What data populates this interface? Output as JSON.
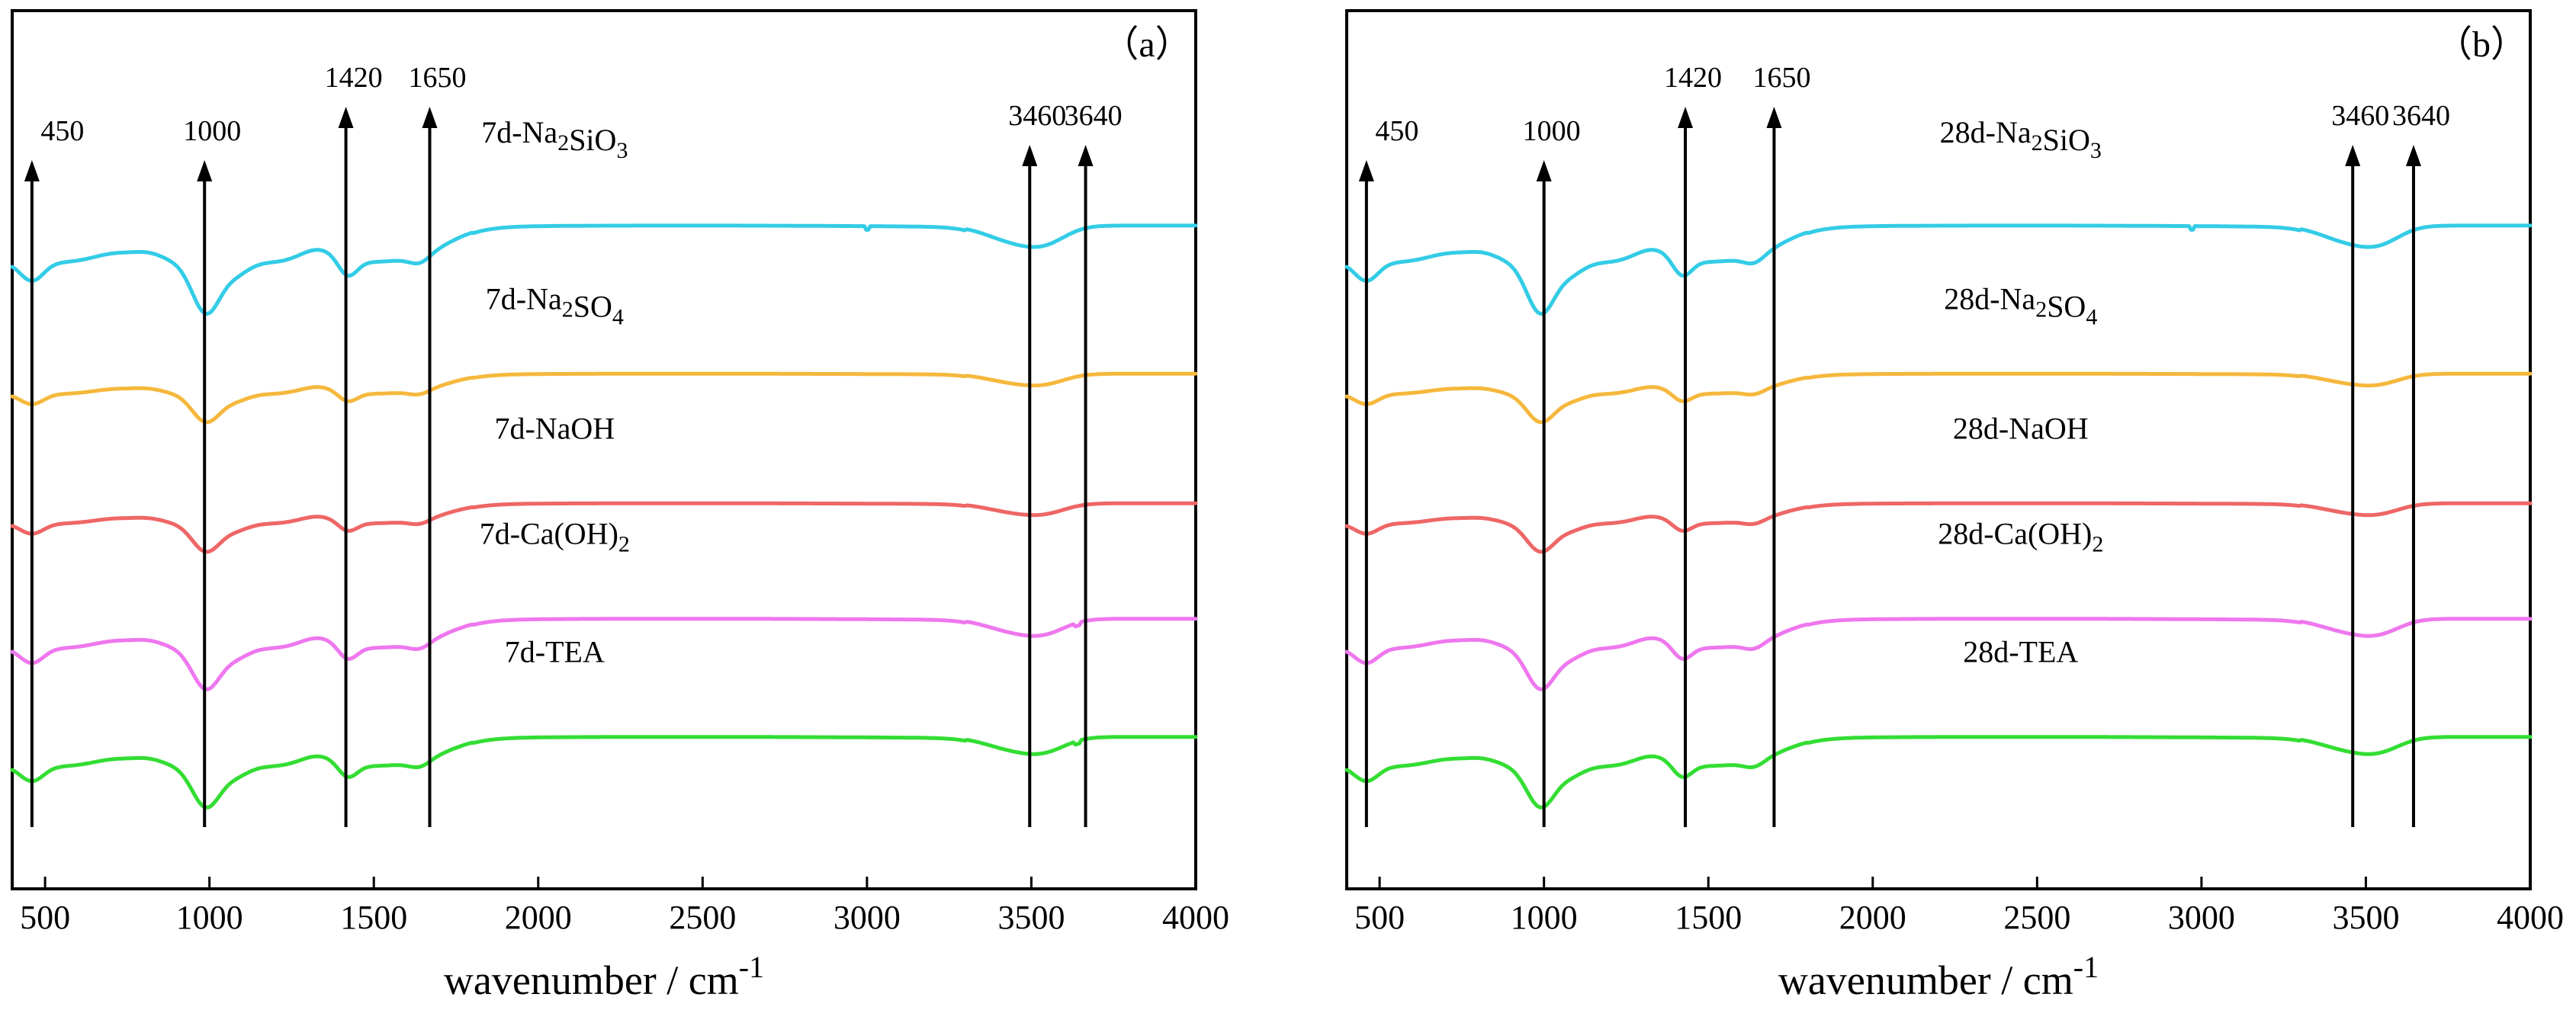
{
  "chart_data": [
    {
      "type": "line",
      "panel_label": "（a）",
      "xlabel": "wavenumber / cm",
      "xlabel_sup": "-1",
      "ylabel": "",
      "xlim": [
        400,
        4000
      ],
      "xticks": [
        500,
        1000,
        1500,
        2000,
        2500,
        3000,
        3500,
        4000
      ],
      "annotations": [
        {
          "label": "450",
          "x": 460
        },
        {
          "label": "1000",
          "x": 985
        },
        {
          "label": "1420",
          "x": 1415
        },
        {
          "label": "1650",
          "x": 1670
        },
        {
          "label": "3460",
          "x": 3495
        },
        {
          "label": "3640",
          "x": 3665
        }
      ],
      "series": [
        {
          "name": "7d-Na2SiO3",
          "label_parts": [
            "7d-Na",
            "2",
            "SiO",
            "3",
            ""
          ],
          "color": "#33cce6",
          "offset": 4.0,
          "scale": 1.0,
          "spike": 3000
        },
        {
          "name": "7d-Na2SO4",
          "label_parts": [
            "7d-Na",
            "2",
            "SO",
            "4",
            ""
          ],
          "color": "#f5b83d",
          "offset": 3.0,
          "scale": 0.55
        },
        {
          "name": "7d-NaOH",
          "label_parts": [
            "7d-NaOH",
            "",
            "",
            "",
            ""
          ],
          "color": "#ee6666",
          "offset": 2.0,
          "scale": 0.55
        },
        {
          "name": "7d-Ca(OH)2",
          "label_parts": [
            "7d-Ca(OH)",
            "2",
            "",
            "",
            ""
          ],
          "color": "#ee77ee",
          "offset": 1.0,
          "scale": 0.8,
          "spike": 3640
        },
        {
          "name": "7d-TEA",
          "label_parts": [
            "7d-TEA",
            "",
            "",
            "",
            ""
          ],
          "color": "#33dd33",
          "offset": 0.0,
          "scale": 0.8,
          "spike": 3640
        }
      ]
    },
    {
      "type": "line",
      "panel_label": "（b）",
      "xlabel": "wavenumber / cm",
      "xlabel_sup": "-1",
      "ylabel": "",
      "xlim": [
        400,
        4000
      ],
      "xticks": [
        500,
        1000,
        1500,
        2000,
        2500,
        3000,
        3500,
        4000
      ],
      "annotations": [
        {
          "label": "450",
          "x": 460
        },
        {
          "label": "1000",
          "x": 1000
        },
        {
          "label": "1420",
          "x": 1430
        },
        {
          "label": "1650",
          "x": 1700
        },
        {
          "label": "3460",
          "x": 3460
        },
        {
          "label": "3640",
          "x": 3645
        }
      ],
      "series": [
        {
          "name": "28d-Na2SiO3",
          "label_parts": [
            "28d-Na",
            "2",
            "SiO",
            "3",
            ""
          ],
          "color": "#33cce6",
          "offset": 4.0,
          "scale": 1.0,
          "spike": 2970
        },
        {
          "name": "28d-Na2SO4",
          "label_parts": [
            "28d-Na",
            "2",
            "SO",
            "4",
            ""
          ],
          "color": "#f5b83d",
          "offset": 3.0,
          "scale": 0.55
        },
        {
          "name": "28d-NaOH",
          "label_parts": [
            "28d-NaOH",
            "",
            "",
            "",
            ""
          ],
          "color": "#ee6666",
          "offset": 2.0,
          "scale": 0.55
        },
        {
          "name": "28d-Ca(OH)2",
          "label_parts": [
            "28d-Ca(OH)",
            "2",
            "",
            "",
            ""
          ],
          "color": "#ee77ee",
          "offset": 1.0,
          "scale": 0.8
        },
        {
          "name": "28d-TEA",
          "label_parts": [
            "28d-TEA",
            "",
            "",
            "",
            ""
          ],
          "color": "#33dd33",
          "offset": 0.0,
          "scale": 0.8
        }
      ]
    }
  ]
}
